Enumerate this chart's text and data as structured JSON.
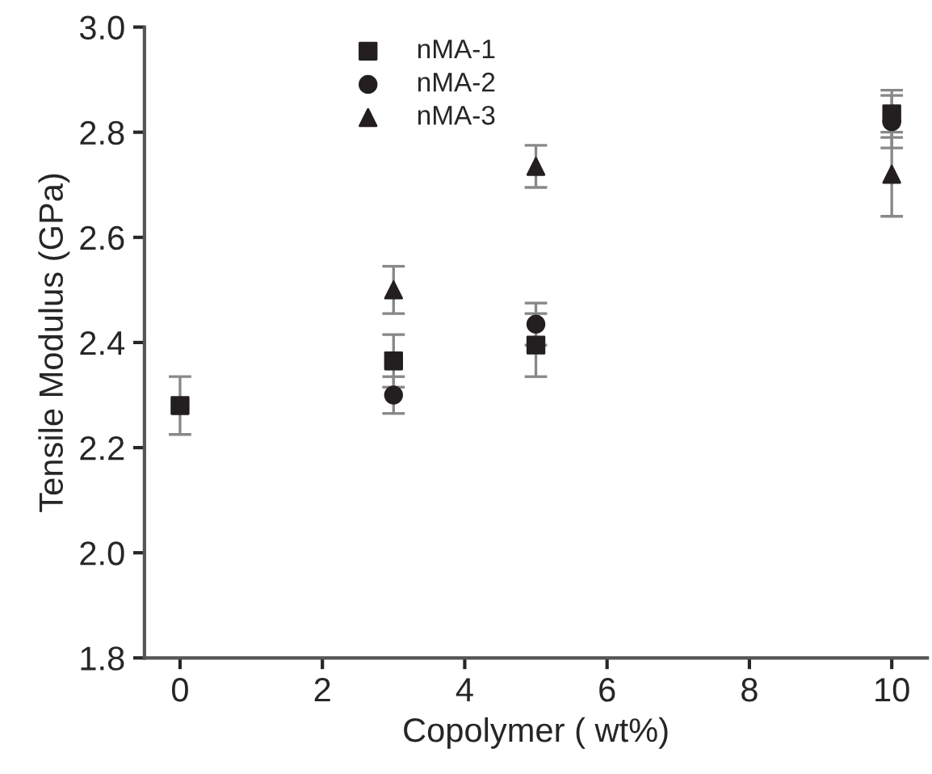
{
  "chart_data": {
    "type": "scatter",
    "xlabel": "Copolymer ( wt%)",
    "ylabel": "Tensile Modulus (GPa)",
    "xlim": [
      -0.5,
      10.5
    ],
    "xticks": [
      0,
      2,
      4,
      6,
      8,
      10
    ],
    "ylim": [
      1.8,
      3.0
    ],
    "yticks": [
      1.8,
      {
        "value": 2.0,
        "label": "2.0"
      },
      2.2,
      2.4,
      2.6,
      2.8,
      {
        "value": 3.0,
        "label": "3.0"
      }
    ],
    "grid": false,
    "legend": "top",
    "series": [
      {
        "name": "nMA-1",
        "color": "#231f20",
        "marker": "square",
        "x": [
          0,
          3,
          5,
          10
        ],
        "values": [
          2.28,
          2.365,
          2.395,
          2.835
        ],
        "errors": [
          0.055,
          0.05,
          0.06,
          0.045
        ]
      },
      {
        "name": "nMA-2",
        "color": "#231f20",
        "marker": "circle",
        "x": [
          3,
          5,
          10
        ],
        "values": [
          2.3,
          2.435,
          2.82
        ],
        "errors": [
          0.035,
          0.04,
          0.05
        ]
      },
      {
        "name": "nMA-3",
        "color": "#231f20",
        "marker": "triangle",
        "x": [
          3,
          5,
          10
        ],
        "values": [
          2.5,
          2.735,
          2.72
        ],
        "errors": [
          0.045,
          0.04,
          0.08
        ]
      }
    ]
  }
}
